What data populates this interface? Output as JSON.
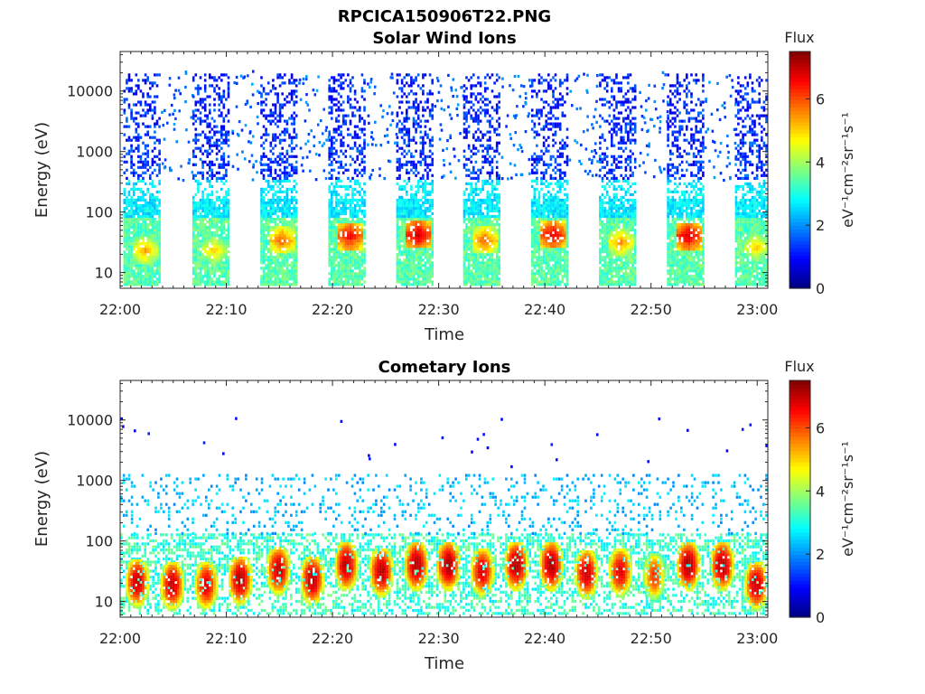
{
  "figure": {
    "title": "RPCICA150906T22.PNG"
  },
  "chart_data": [
    {
      "type": "heatmap",
      "title": "Solar Wind Ions",
      "xlabel": "Time",
      "ylabel": "Energy (eV)",
      "x_ticks": [
        "22:00",
        "22:10",
        "22:20",
        "22:30",
        "22:40",
        "22:50",
        "23:00"
      ],
      "xlim_minutes": [
        0,
        61
      ],
      "y_scale": "log",
      "y_ticks": [
        "10",
        "100",
        "1000",
        "10000"
      ],
      "ylim": [
        5.5,
        45000
      ],
      "colorbar": {
        "title": "Flux",
        "label": "eV⁻¹cm⁻²sr⁻¹s⁻¹",
        "range": [
          0,
          7.5
        ],
        "ticks": [
          "0",
          "2",
          "4",
          "6"
        ],
        "colormap": "jet"
      },
      "bursts_start_minutes": [
        0.3,
        6.8,
        13.2,
        19.6,
        26.0,
        32.3,
        38.7,
        45.1,
        51.5,
        57.9
      ],
      "burst_peak_energy_eV": [
        22,
        22,
        32,
        38,
        40,
        32,
        40,
        30,
        38,
        25
      ],
      "burst_peak_flux": [
        5.3,
        5.0,
        5.8,
        6.6,
        6.9,
        5.8,
        6.7,
        5.4,
        6.8,
        5.0
      ]
    },
    {
      "type": "heatmap",
      "title": "Cometary Ions",
      "xlabel": "Time",
      "ylabel": "Energy (eV)",
      "x_ticks": [
        "22:00",
        "22:10",
        "22:20",
        "22:30",
        "22:40",
        "22:50",
        "23:00"
      ],
      "xlim_minutes": [
        0,
        61
      ],
      "y_scale": "log",
      "y_ticks": [
        "10",
        "100",
        "1000",
        "10000"
      ],
      "ylim": [
        5.5,
        45000
      ],
      "colorbar": {
        "title": "Flux",
        "label": "eV⁻¹cm⁻²sr⁻¹s⁻¹",
        "range": [
          0,
          7.5
        ],
        "ticks": [
          "0",
          "2",
          "4",
          "6"
        ],
        "colormap": "jet"
      },
      "blobs": [
        {
          "t": 1.5,
          "e": 20,
          "flux": 6.8
        },
        {
          "t": 4.8,
          "e": 18,
          "flux": 6.8
        },
        {
          "t": 8.0,
          "e": 18,
          "flux": 6.6
        },
        {
          "t": 11.2,
          "e": 22,
          "flux": 6.9
        },
        {
          "t": 14.8,
          "e": 32,
          "flux": 6.8
        },
        {
          "t": 18.0,
          "e": 22,
          "flux": 6.9
        },
        {
          "t": 21.2,
          "e": 38,
          "flux": 6.9
        },
        {
          "t": 24.5,
          "e": 30,
          "flux": 6.9
        },
        {
          "t": 27.8,
          "e": 38,
          "flux": 7.0
        },
        {
          "t": 30.8,
          "e": 38,
          "flux": 7.0
        },
        {
          "t": 34.0,
          "e": 30,
          "flux": 6.7
        },
        {
          "t": 37.2,
          "e": 38,
          "flux": 7.0
        },
        {
          "t": 40.5,
          "e": 38,
          "flux": 7.0
        },
        {
          "t": 43.8,
          "e": 28,
          "flux": 6.8
        },
        {
          "t": 47.0,
          "e": 30,
          "flux": 6.6
        },
        {
          "t": 50.2,
          "e": 25,
          "flux": 6.0
        },
        {
          "t": 53.4,
          "e": 38,
          "flux": 7.0
        },
        {
          "t": 56.6,
          "e": 38,
          "flux": 7.0
        },
        {
          "t": 59.8,
          "e": 18,
          "flux": 6.8
        }
      ]
    }
  ]
}
